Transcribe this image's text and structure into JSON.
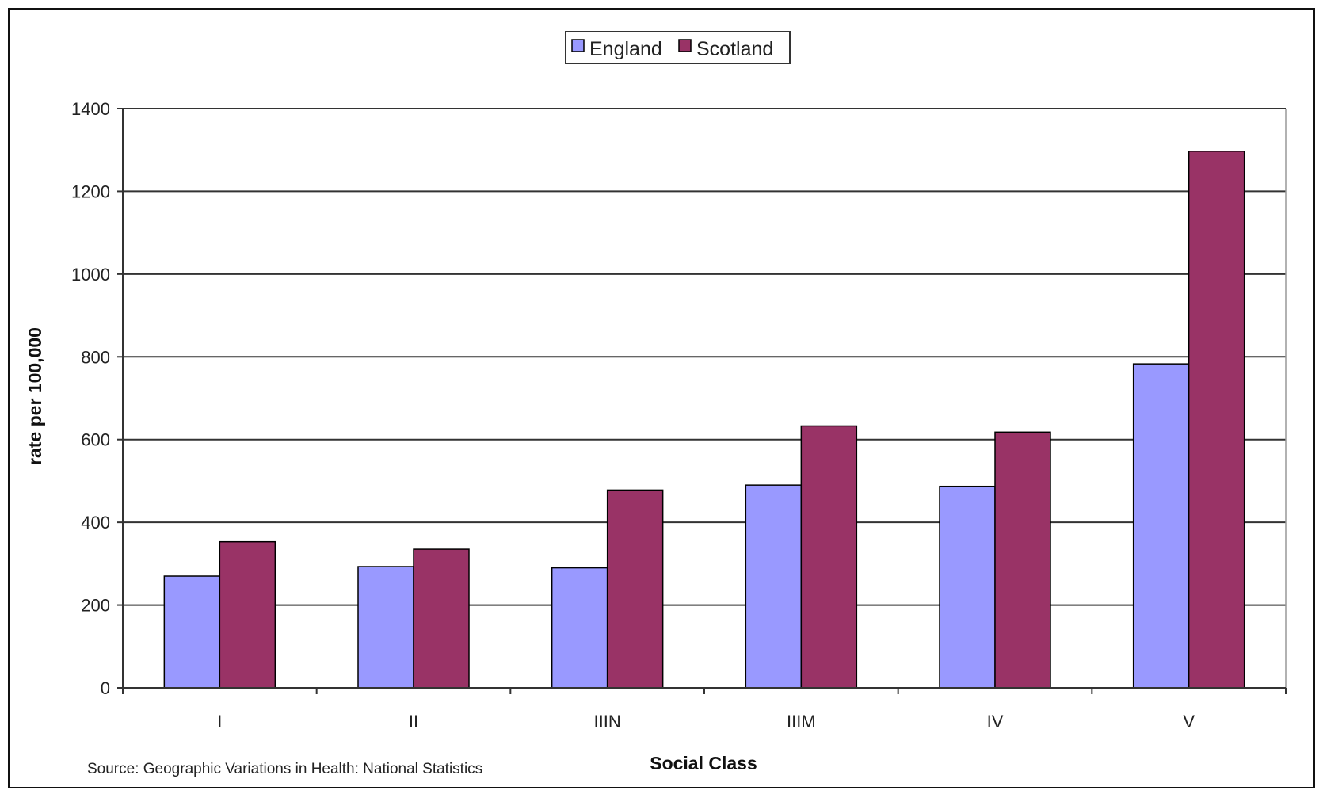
{
  "chart_data": {
    "type": "bar",
    "categories": [
      "I",
      "II",
      "IIIN",
      "IIIM",
      "IV",
      "V"
    ],
    "series": [
      {
        "name": "England",
        "color": "#9999ff",
        "values": [
          270,
          293,
          290,
          490,
          487,
          783
        ]
      },
      {
        "name": "Scotland",
        "color": "#993366",
        "values": [
          353,
          335,
          478,
          633,
          618,
          1297
        ]
      }
    ],
    "title": "",
    "xlabel": "Social Class",
    "ylabel": "rate per 100,000",
    "ylim": [
      0,
      1400
    ],
    "yticks": [
      0,
      200,
      400,
      600,
      800,
      1000,
      1200,
      1400
    ],
    "grid": true,
    "legend_position": "top-center",
    "source": "Source: Geographic Variations in Health: National Statistics"
  }
}
